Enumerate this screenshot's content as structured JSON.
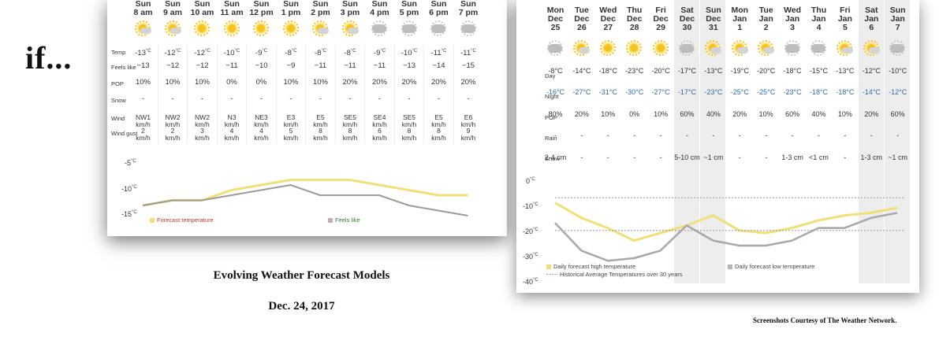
{
  "intro_word": "if...",
  "caption_title": "Evolving Weather Forecast Models",
  "caption_date": "Dec. 24, 2017",
  "credit": "Screenshots Courtesy of The Weather Network.",
  "colors": {
    "forecast_line": "#f0e07a",
    "feels_line": "#9b9b9b",
    "forecast_label": "#c0392b",
    "feels_label": "#2e7d32",
    "night_text": "#2f6ca6",
    "weekend_bg": "#ededed"
  },
  "hourly": {
    "columns": [
      {
        "day": "Sun",
        "time": "8 am",
        "icon": "sun-cloud-icon",
        "temp": "-13",
        "feels": "−13",
        "pop": "10%",
        "snow": "-",
        "wind": [
          "NW1",
          "km/h"
        ],
        "gust": [
          "2",
          "km/h"
        ]
      },
      {
        "day": "Sun",
        "time": "9 am",
        "icon": "sun-cloud-icon",
        "temp": "-12",
        "feels": "−12",
        "pop": "10%",
        "snow": "-",
        "wind": [
          "NW2",
          "km/h"
        ],
        "gust": [
          "2",
          "km/h"
        ]
      },
      {
        "day": "Sun",
        "time": "10 am",
        "icon": "sun-icon",
        "temp": "-12",
        "feels": "−12",
        "pop": "10%",
        "snow": "-",
        "wind": [
          "NW2",
          "km/h"
        ],
        "gust": [
          "3",
          "km/h"
        ]
      },
      {
        "day": "Sun",
        "time": "11 am",
        "icon": "sun-icon",
        "temp": "-10",
        "feels": "−11",
        "pop": "0%",
        "snow": "-",
        "wind": [
          "N3",
          "km/h"
        ],
        "gust": [
          "4",
          "km/h"
        ]
      },
      {
        "day": "Sun",
        "time": "12 pm",
        "icon": "sun-icon",
        "temp": "-9",
        "feels": "−10",
        "pop": "0%",
        "snow": "-",
        "wind": [
          "NE3",
          "km/h"
        ],
        "gust": [
          "4",
          "km/h"
        ]
      },
      {
        "day": "Sun",
        "time": "1 pm",
        "icon": "sun-icon",
        "temp": "-8",
        "feels": "−9",
        "pop": "10%",
        "snow": "-",
        "wind": [
          "E3",
          "km/h"
        ],
        "gust": [
          "5",
          "km/h"
        ]
      },
      {
        "day": "Sun",
        "time": "2 pm",
        "icon": "sun-cloud-icon",
        "temp": "-8",
        "feels": "−11",
        "pop": "10%",
        "snow": "-",
        "wind": [
          "E5",
          "km/h"
        ],
        "gust": [
          "8",
          "km/h"
        ]
      },
      {
        "day": "Sun",
        "time": "3 pm",
        "icon": "sun-cloud-icon",
        "temp": "-8",
        "feels": "−11",
        "pop": "20%",
        "snow": "-",
        "wind": [
          "SE5",
          "km/h"
        ],
        "gust": [
          "8",
          "km/h"
        ]
      },
      {
        "day": "Sun",
        "time": "4 pm",
        "icon": "cloud-icon",
        "temp": "-9",
        "feels": "−11",
        "pop": "20%",
        "snow": "-",
        "wind": [
          "SE4",
          "km/h"
        ],
        "gust": [
          "6",
          "km/h"
        ]
      },
      {
        "day": "Sun",
        "time": "5 pm",
        "icon": "cloud-icon",
        "temp": "-10",
        "feels": "−13",
        "pop": "20%",
        "snow": "-",
        "wind": [
          "SE5",
          "km/h"
        ],
        "gust": [
          "8",
          "km/h"
        ]
      },
      {
        "day": "Sun",
        "time": "6 pm",
        "icon": "cloud-icon",
        "temp": "-11",
        "feels": "−14",
        "pop": "20%",
        "snow": "-",
        "wind": [
          "E5",
          "km/h"
        ],
        "gust": [
          "8",
          "km/h"
        ]
      },
      {
        "day": "Sun",
        "time": "7 pm",
        "icon": "cloud-icon",
        "temp": "-11",
        "feels": "−15",
        "pop": "20%",
        "snow": "-",
        "wind": [
          "E6",
          "km/h"
        ],
        "gust": [
          "9",
          "km/h"
        ]
      }
    ],
    "row_labels": {
      "temp": "Temp",
      "feels": "Feels like",
      "pop": "POP",
      "snow": "Snow",
      "wind": "Wind",
      "gust": "Wind gust"
    },
    "unit_c": "°C",
    "axis_ticks": [
      "-5",
      "-10",
      "-15"
    ],
    "legend_forecast": "Forecast temperature",
    "legend_feels": "Feels like"
  },
  "chart_data": [
    {
      "type": "line",
      "title": "",
      "xlabel": "",
      "ylabel": "",
      "ylim": [
        -15,
        -5
      ],
      "y_ticks": [
        -5,
        -10,
        -15
      ],
      "categories": [
        "8 am",
        "9 am",
        "10 am",
        "11 am",
        "12 pm",
        "1 pm",
        "2 pm",
        "3 pm",
        "4 pm",
        "5 pm",
        "6 pm",
        "7 pm"
      ],
      "series": [
        {
          "name": "Forecast temperature",
          "values": [
            -13,
            -12,
            -12,
            -10,
            -9,
            -8,
            -8,
            -8,
            -9,
            -10,
            -11,
            -11
          ]
        },
        {
          "name": "Feels like",
          "values": [
            -13,
            -12,
            -12,
            -11,
            -10,
            -9,
            -11,
            -11,
            -11,
            -13,
            -14,
            -15
          ]
        }
      ],
      "legend": "bottom"
    },
    {
      "type": "line",
      "title": "",
      "xlabel": "",
      "ylabel": "",
      "ylim": [
        -40,
        0
      ],
      "y_ticks": [
        0,
        -10,
        -20,
        -30,
        -40
      ],
      "categories": [
        "Dec 25",
        "Dec 26",
        "Dec 27",
        "Dec 28",
        "Dec 29",
        "Dec 30",
        "Dec 31",
        "Jan 1",
        "Jan 2",
        "Jan 3",
        "Jan 4",
        "Jan 5",
        "Jan 6",
        "Jan 7"
      ],
      "series": [
        {
          "name": "Daily forecast high temperature",
          "values": [
            -8,
            -14,
            -18,
            -23,
            -20,
            -17,
            -13,
            -19,
            -20,
            -18,
            -15,
            -13,
            -12,
            -10
          ]
        },
        {
          "name": "Daily forecast low temperature",
          "values": [
            -16,
            -27,
            -31,
            -30,
            -27,
            -17,
            -23,
            -25,
            -25,
            -23,
            -18,
            -18,
            -14,
            -12
          ]
        },
        {
          "name": "Historical Average Temperatures over 30 years",
          "values": [
            -6,
            -6,
            -6,
            -6,
            -6,
            -6,
            -6,
            -6,
            -6,
            -6,
            -6,
            -6,
            -6,
            -6
          ]
        },
        {
          "name": "Historical Average Temperatures over 30 years",
          "values": [
            -19,
            -19,
            -19,
            -19,
            -19,
            -19,
            -19,
            -19,
            -19,
            -19,
            -19,
            -19,
            -19,
            -19
          ]
        }
      ],
      "legend": "bottom"
    }
  ],
  "daily": {
    "columns": [
      {
        "dow": "Mon",
        "mon": "Dec",
        "dd": "25",
        "icon": "snow-cloud-icon",
        "day": "-8°C",
        "night": "-16°C",
        "pop": "80%",
        "rain": "-",
        "snow": "2-4 cm",
        "weekend": false
      },
      {
        "dow": "Tue",
        "mon": "Dec",
        "dd": "26",
        "icon": "sun-cloud-icon",
        "day": "-14°C",
        "night": "-27°C",
        "pop": "20%",
        "rain": "-",
        "snow": "-",
        "weekend": false
      },
      {
        "dow": "Wed",
        "mon": "Dec",
        "dd": "27",
        "icon": "sun-icon",
        "day": "-18°C",
        "night": "-31°C",
        "pop": "10%",
        "rain": "-",
        "snow": "-",
        "weekend": false
      },
      {
        "dow": "Thu",
        "mon": "Dec",
        "dd": "28",
        "icon": "sun-icon",
        "day": "-23°C",
        "night": "-30°C",
        "pop": "0%",
        "rain": "-",
        "snow": "-",
        "weekend": false
      },
      {
        "dow": "Fri",
        "mon": "Dec",
        "dd": "29",
        "icon": "sun-icon",
        "day": "-20°C",
        "night": "-27°C",
        "pop": "10%",
        "rain": "-",
        "snow": "-",
        "weekend": false
      },
      {
        "dow": "Sat",
        "mon": "Dec",
        "dd": "30",
        "icon": "snow-cloud-icon",
        "day": "-17°C",
        "night": "-17°C",
        "pop": "60%",
        "rain": "-",
        "snow": "5-10 cm",
        "weekend": true
      },
      {
        "dow": "Sun",
        "mon": "Dec",
        "dd": "31",
        "icon": "sun-cloud-icon",
        "day": "-13°C",
        "night": "-23°C",
        "pop": "40%",
        "rain": "-",
        "snow": "~1 cm",
        "weekend": true
      },
      {
        "dow": "Mon",
        "mon": "Jan",
        "dd": "1",
        "icon": "sun-cloud-icon",
        "day": "-19°C",
        "night": "-25°C",
        "pop": "20%",
        "rain": "-",
        "snow": "-",
        "weekend": false
      },
      {
        "dow": "Tue",
        "mon": "Jan",
        "dd": "2",
        "icon": "sun-cloud-icon",
        "day": "-20°C",
        "night": "-25°C",
        "pop": "10%",
        "rain": "-",
        "snow": "-",
        "weekend": false
      },
      {
        "dow": "Wed",
        "mon": "Jan",
        "dd": "3",
        "icon": "snow-cloud-icon",
        "day": "-18°C",
        "night": "-23°C",
        "pop": "60%",
        "rain": "-",
        "snow": "1-3 cm",
        "weekend": false
      },
      {
        "dow": "Thu",
        "mon": "Jan",
        "dd": "4",
        "icon": "snow-cloud-icon",
        "day": "-15°C",
        "night": "-18°C",
        "pop": "40%",
        "rain": "-",
        "snow": "<1 cm",
        "weekend": false
      },
      {
        "dow": "Fri",
        "mon": "Jan",
        "dd": "5",
        "icon": "sun-cloud-icon",
        "day": "-13°C",
        "night": "-18°C",
        "pop": "10%",
        "rain": "-",
        "snow": "-",
        "weekend": false
      },
      {
        "dow": "Sat",
        "mon": "Jan",
        "dd": "6",
        "icon": "sun-cloud-icon",
        "day": "-12°C",
        "night": "-14°C",
        "pop": "20%",
        "rain": "-",
        "snow": "1-3 cm",
        "weekend": true
      },
      {
        "dow": "Sun",
        "mon": "Jan",
        "dd": "7",
        "icon": "snow-cloud-icon",
        "day": "-10°C",
        "night": "-12°C",
        "pop": "60%",
        "rain": "-",
        "snow": "~1 cm",
        "weekend": true
      }
    ],
    "row_labels": {
      "day": "Day",
      "night": "Night",
      "pop": "POP",
      "rain": "Rain",
      "snow": "Snow"
    },
    "axis_ticks": [
      "0",
      "-10",
      "-20",
      "-30",
      "-40"
    ],
    "unit_c": "°C",
    "legend_high": "Daily forecast high temperature",
    "legend_low": "Daily forecast low temperature",
    "legend_hist": "Historical Average Temperatures over 30 years"
  }
}
